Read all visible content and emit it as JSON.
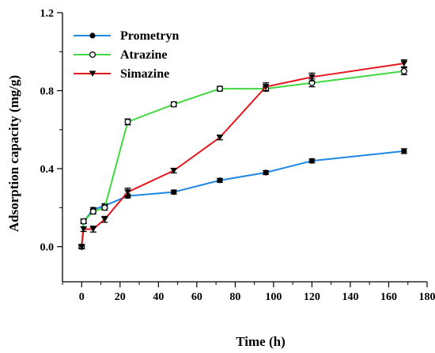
{
  "chart_data": {
    "type": "line",
    "xlabel": "Time (h)",
    "ylabel": "Adsorption capacity (mg/g)",
    "xlim": [
      -10,
      180
    ],
    "ylim": [
      -0.18,
      1.2
    ],
    "xticks": [
      0,
      20,
      40,
      60,
      80,
      100,
      120,
      140,
      160,
      180
    ],
    "xtick_labels": [
      "0",
      "20",
      "40",
      "60",
      "80",
      "100",
      "120",
      "140",
      "160",
      "180"
    ],
    "yticks": [
      0.0,
      0.4,
      0.8,
      1.2
    ],
    "ytick_labels": [
      "0.0",
      "0.4",
      "0.8",
      "1.2"
    ],
    "grid": false,
    "legend_position": "top-left",
    "x": [
      0,
      1,
      6,
      12,
      24,
      48,
      72,
      96,
      120,
      168
    ],
    "series": [
      {
        "name": "Prometryn",
        "color": "#1e88e5",
        "marker": "filled-circle",
        "values": [
          0.0,
          0.13,
          0.19,
          0.21,
          0.26,
          0.28,
          0.34,
          0.38,
          0.44,
          0.49
        ],
        "errors": [
          0.01,
          0.01,
          0.01,
          0.01,
          0.01,
          0.01,
          0.01,
          0.01,
          0.01,
          0.012
        ]
      },
      {
        "name": "Atrazine",
        "color": "#3fd83f",
        "marker": "open-circle",
        "values": [
          0.0,
          0.13,
          0.18,
          0.2,
          0.64,
          0.73,
          0.81,
          0.81,
          0.84,
          0.9
        ],
        "errors": [
          0.01,
          0.012,
          0.012,
          0.012,
          0.015,
          0.012,
          0.012,
          0.012,
          0.02,
          0.018
        ]
      },
      {
        "name": "Simazine",
        "color": "#e8141c",
        "marker": "filled-triangle-down",
        "values": [
          0.0,
          0.09,
          0.09,
          0.14,
          0.28,
          0.39,
          0.56,
          0.82,
          0.87,
          0.94
        ],
        "errors": [
          0.01,
          0.012,
          0.015,
          0.015,
          0.02,
          0.012,
          0.012,
          0.02,
          0.02,
          0.018
        ]
      }
    ]
  }
}
